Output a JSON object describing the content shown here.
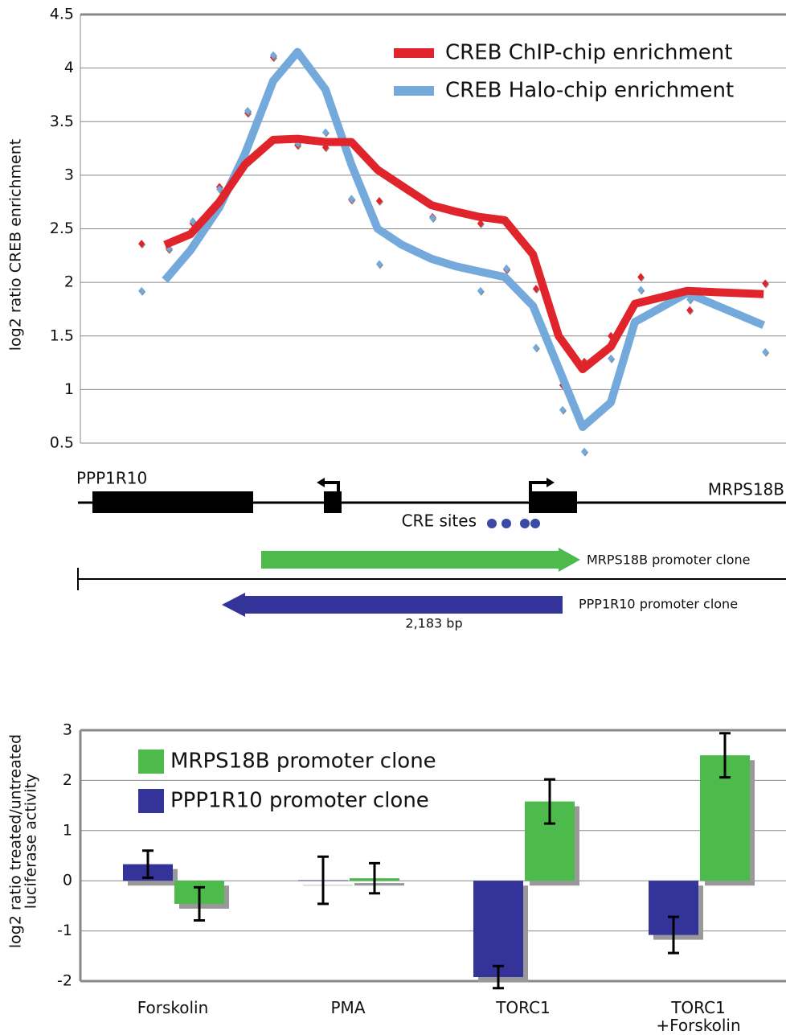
{
  "chart_data": [
    {
      "type": "line",
      "ylabel": "log2 ratio CREB enrichment",
      "xlim": [
        0,
        2183
      ],
      "ylim": [
        0.5,
        4.5
      ],
      "yticks": [
        0.5,
        1,
        1.5,
        2,
        2.5,
        3,
        3.5,
        4,
        4.5
      ],
      "grid": true,
      "legend": "top-right",
      "series": [
        {
          "name": "CREB ChIP-chip enrichment",
          "color": "#e0242b",
          "x": [
            268,
            347,
            436,
            515,
            602,
            677,
            763,
            843,
            924,
            999,
            1090,
            1165,
            1239,
            1316,
            1403,
            1482,
            1556,
            1643,
            1717,
            1878,
            2114
          ],
          "values": [
            2.35,
            2.45,
            2.75,
            3.1,
            3.33,
            3.34,
            3.31,
            3.31,
            3.05,
            2.9,
            2.72,
            2.66,
            2.61,
            2.58,
            2.26,
            1.5,
            1.19,
            1.4,
            1.8,
            1.92,
            1.89
          ]
        },
        {
          "name": "CREB Halo-chip enrichment",
          "color": "#74a9dc",
          "x": [
            268,
            347,
            436,
            515,
            602,
            677,
            763,
            843,
            924,
            999,
            1090,
            1165,
            1239,
            1316,
            1403,
            1482,
            1556,
            1643,
            1717,
            1878,
            2114
          ],
          "values": [
            2.02,
            2.3,
            2.7,
            3.2,
            3.88,
            4.15,
            3.8,
            3.1,
            2.5,
            2.35,
            2.22,
            2.15,
            2.1,
            2.05,
            1.78,
            1.2,
            0.65,
            0.88,
            1.63,
            1.9,
            1.6
          ]
        },
        {
          "style": "markers",
          "color": "#e0242b",
          "x": [
            196,
            280,
            354,
            436,
            523,
            602,
            677,
            763,
            843,
            929,
            1093,
            1241,
            1321,
            1412,
            1494,
            1561,
            1643,
            1735,
            1886,
            2119
          ],
          "values": [
            2.36,
            2.31,
            2.55,
            2.89,
            3.58,
            4.1,
            3.28,
            3.26,
            2.77,
            2.76,
            2.61,
            2.55,
            2.12,
            1.94,
            1.04,
            1.26,
            1.5,
            2.05,
            1.74,
            1.99
          ]
        },
        {
          "style": "markers",
          "color": "#74a9dc",
          "x": [
            196,
            280,
            354,
            436,
            523,
            602,
            677,
            763,
            843,
            929,
            1093,
            1241,
            1321,
            1412,
            1494,
            1561,
            1643,
            1735,
            1886,
            2119
          ],
          "values": [
            1.92,
            2.32,
            2.57,
            2.87,
            3.6,
            4.12,
            3.3,
            3.4,
            2.78,
            2.17,
            2.6,
            1.92,
            2.13,
            1.39,
            0.81,
            0.42,
            1.29,
            1.93,
            1.84,
            1.35
          ]
        }
      ]
    },
    {
      "type": "bar",
      "ylabel": [
        "log2 ratio treated/untreated",
        "luciferase activity"
      ],
      "categories": [
        "Forskolin",
        "PMA",
        "TORC1",
        "TORC1 +Forskolin"
      ],
      "ylim": [
        -2,
        3
      ],
      "yticks": [
        -2,
        -1,
        0,
        1,
        2,
        3
      ],
      "grid": true,
      "legend": "top-left",
      "series": [
        {
          "name": "PPP1R10 promoter clone",
          "color": "#333399",
          "values": [
            0.33,
            0.01,
            -1.92,
            -1.08
          ],
          "errors": [
            0.27,
            0.47,
            0.22,
            0.36
          ]
        },
        {
          "name": "MRPS18B promoter clone",
          "color": "#4cbb4c",
          "values": [
            -0.46,
            0.05,
            1.58,
            2.5
          ],
          "errors": [
            0.33,
            0.3,
            0.44,
            0.44
          ]
        }
      ]
    }
  ],
  "diagram": {
    "genes": [
      "PPP1R10",
      "MRPS18B"
    ],
    "cre_label": "CRE sites",
    "clones": [
      "MRPS18B promoter clone",
      "PPP1R10 promoter clone"
    ],
    "scale": "2,183 bp"
  }
}
